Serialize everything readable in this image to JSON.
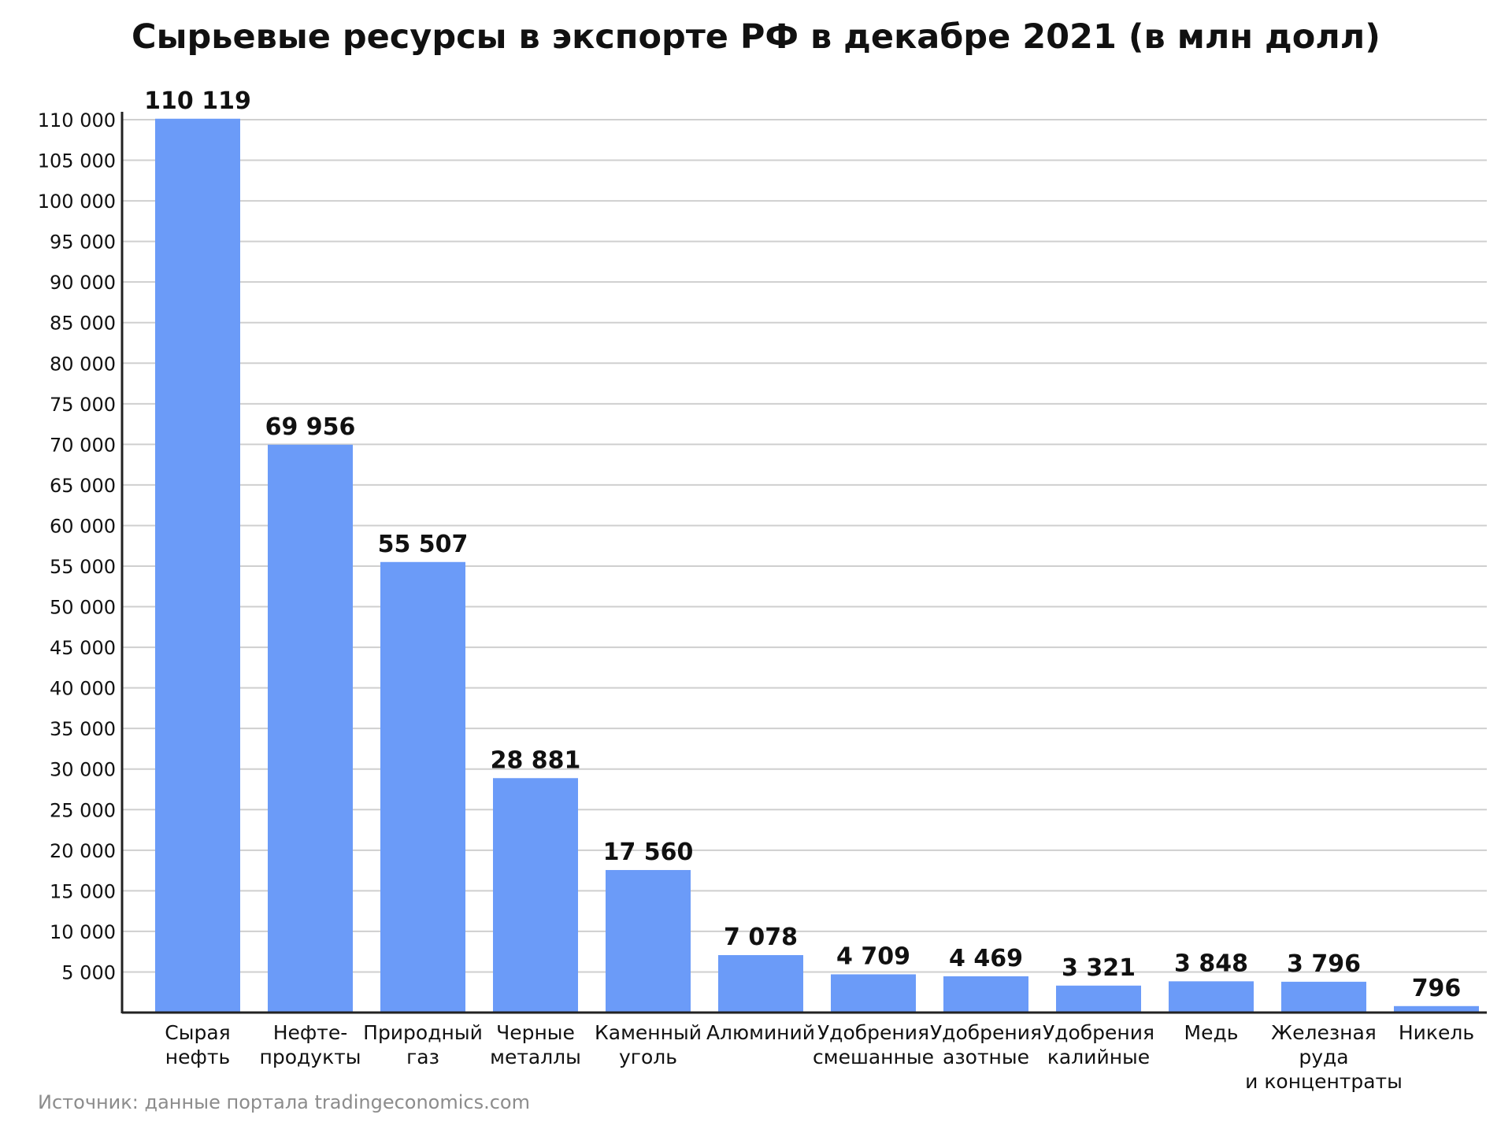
{
  "chart_data": {
    "type": "bar",
    "title": "Сырьевые ресурсы в экспорте РФ в декабре 2021 (в млн долл)",
    "source": "Источник: данные портала tradingeconomics.com",
    "categories": [
      [
        "Сырая",
        "нефть"
      ],
      [
        "Нефте-",
        "продукты"
      ],
      [
        "Природный",
        "газ"
      ],
      [
        "Черные",
        "металлы"
      ],
      [
        "Каменный",
        "уголь"
      ],
      [
        "Алюминий"
      ],
      [
        "Удобрения",
        "смешанные"
      ],
      [
        "Удобрения",
        "азотные"
      ],
      [
        "Удобрения",
        "калийные"
      ],
      [
        "Медь"
      ],
      [
        "Железная",
        "руда",
        "и концентраты"
      ],
      [
        "Никель"
      ]
    ],
    "values": [
      110119,
      69956,
      55507,
      28881,
      17560,
      7078,
      4709,
      4469,
      3321,
      3848,
      3796,
      796
    ],
    "value_labels": [
      "110 119",
      "69 956",
      "55 507",
      "28 881",
      "17 560",
      "7 078",
      "4 709",
      "4 469",
      "3 321",
      "3 848",
      "3 796",
      "796"
    ],
    "yticks": [
      5000,
      10000,
      15000,
      20000,
      25000,
      30000,
      35000,
      40000,
      45000,
      50000,
      55000,
      60000,
      65000,
      70000,
      75000,
      80000,
      85000,
      90000,
      95000,
      100000,
      105000,
      110000
    ],
    "ytick_labels": [
      "5 000",
      "10 000",
      "15 000",
      "20 000",
      "25 000",
      "30 000",
      "35 000",
      "40 000",
      "45 000",
      "50 000",
      "55 000",
      "60 000",
      "65 000",
      "70 000",
      "75 000",
      "80 000",
      "85 000",
      "90 000",
      "95 000",
      "100 000",
      "105 000",
      "110 000"
    ],
    "ylim": [
      0,
      110000
    ],
    "grid": true,
    "bar_color": "#6b9bf8",
    "grid_color": "#cfcfcf",
    "axis_color": "#222222",
    "text_color": "#111111"
  }
}
